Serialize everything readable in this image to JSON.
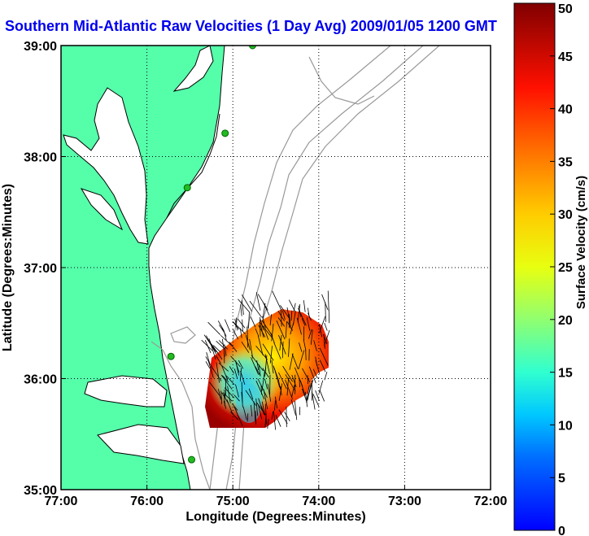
{
  "title": "Southern Mid-Atlantic Raw Velocities (1 Day Avg) 2009/01/05 1200 GMT",
  "map": {
    "xlabel": "Longitude (Degrees:Minutes)",
    "ylabel": "Latitude (Degrees:Minutes)",
    "lon_range": [
      -77,
      -72
    ],
    "lat_range": [
      35,
      39
    ],
    "x_ticks": [
      {
        "value": -77,
        "label": "77:00"
      },
      {
        "value": -76,
        "label": "76:00"
      },
      {
        "value": -75,
        "label": "75:00"
      },
      {
        "value": -74,
        "label": "74:00"
      },
      {
        "value": -73,
        "label": "73:00"
      },
      {
        "value": -72,
        "label": "72:00"
      }
    ],
    "y_ticks": [
      {
        "value": 39,
        "label": "39:00"
      },
      {
        "value": 38,
        "label": "38:00"
      },
      {
        "value": 37,
        "label": "37:00"
      },
      {
        "value": 36,
        "label": "36:00"
      },
      {
        "value": 35,
        "label": "35:00"
      }
    ],
    "grid": "dotted",
    "colors": {
      "land": "#55ffaa",
      "coast": "#000000",
      "bathymetry": "#999999",
      "station": "#22bb22",
      "title": "#0000ee"
    },
    "stations": [
      {
        "lon": -74.77,
        "lat": 39.0
      },
      {
        "lon": -75.09,
        "lat": 38.21
      },
      {
        "lon": -75.53,
        "lat": 37.72
      },
      {
        "lon": -75.72,
        "lat": 36.2
      },
      {
        "lon": -75.48,
        "lat": 35.27
      }
    ]
  },
  "colorbar": {
    "label": "Surface Velocity (cm/s)",
    "min": 0,
    "max": 50,
    "ticks": [
      "0",
      "5",
      "10",
      "15",
      "20",
      "25",
      "30",
      "35",
      "40",
      "45",
      "50"
    ],
    "colormap": "jet",
    "colors": [
      "#0000ff",
      "#00a0ff",
      "#00ffff",
      "#80ff80",
      "#ffff00",
      "#ff8000",
      "#ff0000",
      "#800000"
    ]
  }
}
